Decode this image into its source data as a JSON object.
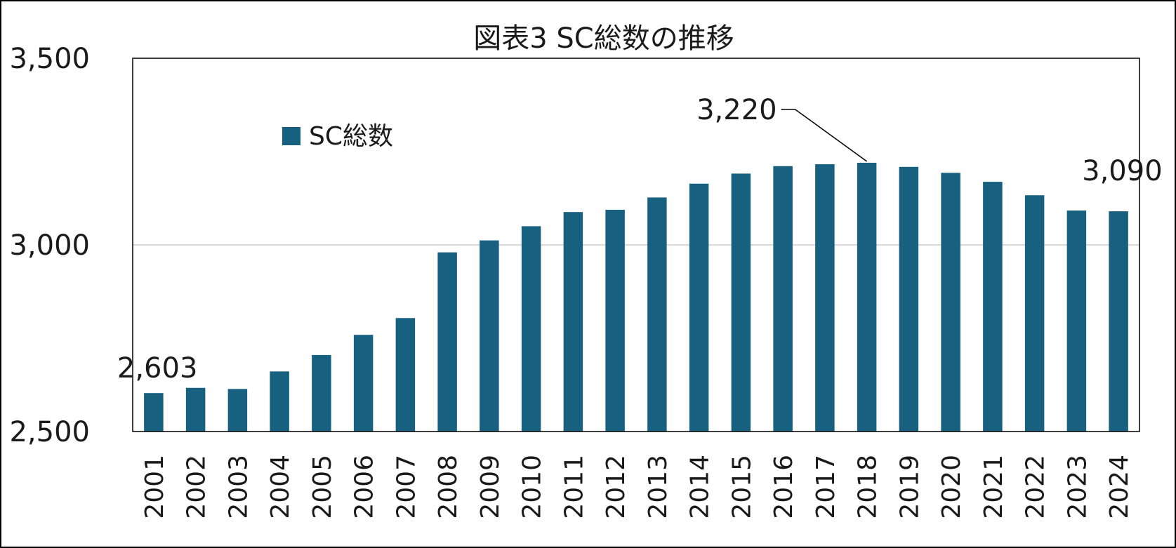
{
  "chart_data": {
    "type": "bar",
    "title": "図表3 SC総数の推移",
    "xlabel": "",
    "ylabel": "",
    "categories": [
      "2001",
      "2002",
      "2003",
      "2004",
      "2005",
      "2006",
      "2007",
      "2008",
      "2009",
      "2010",
      "2011",
      "2012",
      "2013",
      "2014",
      "2015",
      "2016",
      "2017",
      "2018",
      "2019",
      "2020",
      "2021",
      "2022",
      "2023",
      "2024"
    ],
    "series": [
      {
        "name": "SC総数",
        "color": "#17607f",
        "values": [
          2603,
          2617,
          2614,
          2661,
          2705,
          2759,
          2804,
          2980,
          3012,
          3050,
          3088,
          3094,
          3127,
          3164,
          3191,
          3211,
          3216,
          3220,
          3209,
          3193,
          3169,
          3133,
          3092,
          3090
        ]
      }
    ],
    "ylim": [
      2500,
      3500
    ],
    "yticks": [
      "2,500",
      "3,000",
      "3,500"
    ],
    "ytick_values": [
      2500,
      3000,
      3500
    ],
    "grid": true,
    "legend": "top-left",
    "annotations": [
      {
        "category": "2001",
        "text": "2,603"
      },
      {
        "category": "2018",
        "text": "3,220"
      },
      {
        "category": "2024",
        "text": "3,090"
      }
    ]
  }
}
